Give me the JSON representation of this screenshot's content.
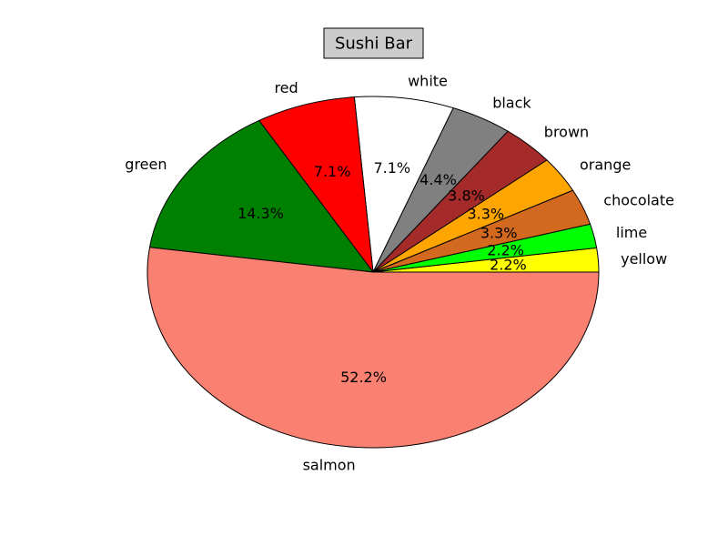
{
  "chart_data": {
    "type": "pie",
    "title": "Sushi Bar",
    "title_box_color": "#cccccc",
    "start_angle_deg": 0,
    "direction": "counterclockwise",
    "slices": [
      {
        "label": "yellow",
        "value": 2.2,
        "pct_text": "2.2%",
        "color": "#ffff00"
      },
      {
        "label": "lime",
        "value": 2.2,
        "pct_text": "2.2%",
        "color": "#00ff00"
      },
      {
        "label": "chocolate",
        "value": 3.3,
        "pct_text": "3.3%",
        "color": "#d2691e"
      },
      {
        "label": "orange",
        "value": 3.3,
        "pct_text": "3.3%",
        "color": "#ffa500"
      },
      {
        "label": "brown",
        "value": 3.8,
        "pct_text": "3.8%",
        "color": "#a52a2a"
      },
      {
        "label": "black",
        "value": 4.4,
        "pct_text": "4.4%",
        "color": "#808080"
      },
      {
        "label": "white",
        "value": 7.1,
        "pct_text": "7.1%",
        "color": "#ffffff"
      },
      {
        "label": "red",
        "value": 7.1,
        "pct_text": "7.1%",
        "color": "#ff0000"
      },
      {
        "label": "green",
        "value": 14.3,
        "pct_text": "14.3%",
        "color": "#008000"
      },
      {
        "label": "salmon",
        "value": 52.2,
        "pct_text": "52.2%",
        "color": "#fa8072"
      }
    ]
  }
}
